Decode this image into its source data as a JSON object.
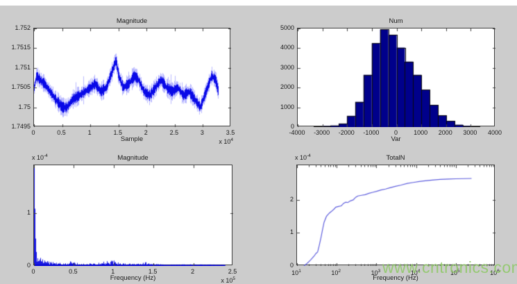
{
  "page": {
    "watermark_text": "www.cntronics.com",
    "watermark_color": "#8cc863",
    "figure_background": "#cccccc",
    "plot_background": "#ffffff",
    "axis_color": "#3f3f3f"
  },
  "chart_data": [
    {
      "id": "magnitude-time",
      "type": "noisy-line",
      "title": "Magnitude",
      "xlabel": "Sample",
      "x_exp": {
        "base": "x 10",
        "exp": "4"
      },
      "xlim": [
        0,
        3.5
      ],
      "xtick_vals": [
        0,
        0.5,
        1,
        1.5,
        2,
        2.5,
        3,
        3.5
      ],
      "xtick_labels": [
        "0",
        "0.5",
        "1",
        "1.5",
        "2",
        "2.5",
        "3",
        "3.5"
      ],
      "ylim": [
        1.7495,
        1.752
      ],
      "ytick_vals": [
        1.7495,
        1.75,
        1.7505,
        1.751,
        1.7515,
        1.752
      ],
      "ytick_labels": [
        "1.7495",
        "1.75",
        "1.7505",
        "1.751",
        "1.7515",
        "1.752"
      ],
      "x_end": 3.27,
      "noise_amp": 0.00021,
      "line_color": "#0000e6",
      "trend": [
        [
          0,
          1.7505
        ],
        [
          0.04,
          1.7508
        ],
        [
          0.1,
          1.7507
        ],
        [
          0.18,
          1.7506
        ],
        [
          0.28,
          1.7504
        ],
        [
          0.38,
          1.7502
        ],
        [
          0.5,
          1.75
        ],
        [
          0.58,
          1.75
        ],
        [
          0.68,
          1.7502
        ],
        [
          0.8,
          1.7503
        ],
        [
          0.9,
          1.7504
        ],
        [
          1.0,
          1.7505
        ],
        [
          1.08,
          1.7506
        ],
        [
          1.18,
          1.7504
        ],
        [
          1.28,
          1.7505
        ],
        [
          1.38,
          1.7509
        ],
        [
          1.45,
          1.7512
        ],
        [
          1.5,
          1.7508
        ],
        [
          1.58,
          1.7505
        ],
        [
          1.68,
          1.7506
        ],
        [
          1.78,
          1.7508
        ],
        [
          1.85,
          1.7507
        ],
        [
          1.95,
          1.7504
        ],
        [
          2.05,
          1.7503
        ],
        [
          2.15,
          1.7505
        ],
        [
          2.25,
          1.7507
        ],
        [
          2.35,
          1.7505
        ],
        [
          2.45,
          1.7504
        ],
        [
          2.55,
          1.7505
        ],
        [
          2.65,
          1.7503
        ],
        [
          2.75,
          1.7504
        ],
        [
          2.85,
          1.7502
        ],
        [
          2.95,
          1.75
        ],
        [
          3.05,
          1.7504
        ],
        [
          3.15,
          1.7508
        ],
        [
          3.22,
          1.7507
        ],
        [
          3.27,
          1.7504
        ]
      ]
    },
    {
      "id": "num-histogram",
      "type": "histogram",
      "title": "Num",
      "xlabel": "Var",
      "xlim": [
        -4000,
        4000
      ],
      "xtick_vals": [
        -4000,
        -3000,
        -2000,
        -1000,
        0,
        1000,
        2000,
        3000,
        4000
      ],
      "xtick_labels": [
        "-4000",
        "-3000",
        "-2000",
        "-1000",
        "0",
        "1000",
        "2000",
        "3000",
        "4000"
      ],
      "ylim": [
        0,
        5000
      ],
      "ytick_vals": [
        0,
        1000,
        2000,
        3000,
        4000,
        5000
      ],
      "ytick_labels": [
        "0",
        "1000",
        "2000",
        "3000",
        "4000",
        "5000"
      ],
      "bin_start": -3350,
      "bin_width": 335,
      "counts": [
        30,
        45,
        80,
        180,
        570,
        1280,
        2650,
        4250,
        4950,
        4670,
        4030,
        3320,
        2650,
        1890,
        1110,
        600,
        300,
        120,
        50,
        30
      ],
      "fill": "#00008b",
      "edge": "#0a0a0a"
    },
    {
      "id": "magnitude-spectrum",
      "type": "spike-spectrum",
      "title": "Magnitude",
      "xlabel": "Frequency (Hz)",
      "x_exp": {
        "base": "x 10",
        "exp": "5"
      },
      "y_exp": {
        "base": "x 10",
        "exp": "-4"
      },
      "xlim": [
        0,
        2.5
      ],
      "xtick_vals": [
        0,
        0.5,
        1,
        1.5,
        2,
        2.5
      ],
      "xtick_labels": [
        "0",
        "0.5",
        "1",
        "1.5",
        "2",
        "2.5"
      ],
      "ylim": [
        0,
        1.9
      ],
      "ytick_vals": [
        0,
        1
      ],
      "ytick_labels": [
        "0",
        "1"
      ],
      "x_end": 2.4,
      "line_color": "#0000dd",
      "envelope": [
        [
          0,
          1.85
        ],
        [
          0.005,
          1.6
        ],
        [
          0.01,
          0.9
        ],
        [
          0.02,
          0.45
        ],
        [
          0.035,
          0.28
        ],
        [
          0.06,
          0.18
        ],
        [
          0.1,
          0.13
        ],
        [
          0.15,
          0.1
        ],
        [
          0.22,
          0.08
        ],
        [
          0.3,
          0.07
        ],
        [
          0.4,
          0.06
        ],
        [
          0.47,
          0.11
        ],
        [
          0.5,
          0.07
        ],
        [
          0.6,
          0.05
        ],
        [
          0.7,
          0.05
        ],
        [
          0.8,
          0.06
        ],
        [
          0.93,
          0.1
        ],
        [
          0.98,
          0.13
        ],
        [
          1.03,
          0.07
        ],
        [
          1.15,
          0.05
        ],
        [
          1.3,
          0.04
        ],
        [
          1.4,
          0.08
        ],
        [
          1.45,
          0.04
        ],
        [
          1.6,
          0.035
        ],
        [
          1.8,
          0.03
        ],
        [
          2.0,
          0.03
        ],
        [
          2.2,
          0.025
        ],
        [
          2.4,
          0.02
        ]
      ]
    },
    {
      "id": "totaln-curve",
      "type": "log-line",
      "title": "TotalN",
      "xlabel": "Frequency (Hz)",
      "y_exp": {
        "base": "x 10",
        "exp": "-4"
      },
      "xlim_log": [
        1,
        6
      ],
      "xtick_vals": [
        1,
        2,
        3,
        4,
        5,
        6
      ],
      "xtick_sups": [
        {
          "base": "10",
          "exp": "1"
        },
        {
          "base": "10",
          "exp": "2"
        },
        {
          "base": "10",
          "exp": "3"
        },
        {
          "base": "10",
          "exp": "4"
        },
        {
          "base": "10",
          "exp": "5"
        },
        {
          "base": "10",
          "exp": "6"
        }
      ],
      "ylim": [
        0,
        3.05
      ],
      "ytick_vals": [
        0,
        1,
        2
      ],
      "ytick_labels": [
        "0",
        "1",
        "2"
      ],
      "line_color": "#5e5edd",
      "points": [
        [
          15,
          0
        ],
        [
          18,
          0.08
        ],
        [
          22,
          0.18
        ],
        [
          27,
          0.3
        ],
        [
          30,
          0.38
        ],
        [
          33,
          0.42
        ],
        [
          36,
          0.6
        ],
        [
          40,
          0.85
        ],
        [
          44,
          1.1
        ],
        [
          48,
          1.32
        ],
        [
          55,
          1.5
        ],
        [
          65,
          1.6
        ],
        [
          75,
          1.66
        ],
        [
          85,
          1.72
        ],
        [
          95,
          1.78
        ],
        [
          110,
          1.8
        ],
        [
          130,
          1.82
        ],
        [
          150,
          1.9
        ],
        [
          170,
          1.93
        ],
        [
          190,
          1.92
        ],
        [
          220,
          1.97
        ],
        [
          260,
          2.0
        ],
        [
          300,
          2.08
        ],
        [
          340,
          2.12
        ],
        [
          420,
          2.14
        ],
        [
          520,
          2.16
        ],
        [
          650,
          2.2
        ],
        [
          800,
          2.23
        ],
        [
          1000,
          2.26
        ],
        [
          1300,
          2.3
        ],
        [
          1700,
          2.33
        ],
        [
          2200,
          2.37
        ],
        [
          3000,
          2.41
        ],
        [
          4200,
          2.45
        ],
        [
          6000,
          2.5
        ],
        [
          8500,
          2.53
        ],
        [
          12000,
          2.56
        ],
        [
          17000,
          2.58
        ],
        [
          25000,
          2.6
        ],
        [
          40000,
          2.62
        ],
        [
          65000,
          2.63
        ],
        [
          100000,
          2.64
        ],
        [
          160000,
          2.645
        ],
        [
          250000,
          2.65
        ]
      ]
    }
  ]
}
